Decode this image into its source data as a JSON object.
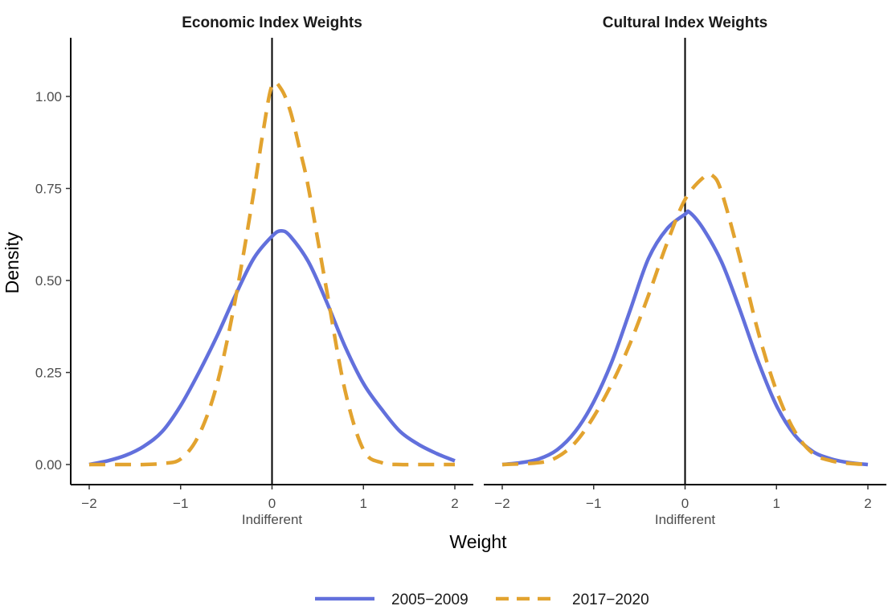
{
  "chart_data": {
    "type": "line",
    "ylabel": "Density",
    "xlabel": "Weight",
    "zero_tick_sublabel": "Indifferent",
    "xlim": [
      -2,
      2
    ],
    "ylim": [
      0,
      1.05
    ],
    "x_ticks": [
      -2,
      -1,
      0,
      1,
      2
    ],
    "x_tick_labels": [
      "−2",
      "−1",
      "0",
      "1",
      "2"
    ],
    "y_ticks": [
      0,
      0.25,
      0.5,
      0.75,
      1.0
    ],
    "y_tick_labels": [
      "0.00",
      "0.25",
      "0.50",
      "0.75",
      "1.00"
    ],
    "reference_line_x": 0,
    "legend_position": "bottom",
    "legend": [
      {
        "label": "2005−2009",
        "color": "#6270DC",
        "style": "solid"
      },
      {
        "label": "2017−2020",
        "color": "#E2A32F",
        "style": "dashed"
      }
    ],
    "panels": [
      {
        "title": "Economic Index Weights",
        "series": [
          {
            "name": "2005−2009",
            "x": [
              -2.0,
              -1.8,
              -1.6,
              -1.4,
              -1.2,
              -1.0,
              -0.8,
              -0.6,
              -0.4,
              -0.2,
              0.0,
              0.1,
              0.2,
              0.4,
              0.6,
              0.8,
              1.0,
              1.2,
              1.4,
              1.6,
              1.8,
              2.0
            ],
            "y": [
              0.0,
              0.01,
              0.025,
              0.05,
              0.09,
              0.16,
              0.25,
              0.35,
              0.46,
              0.56,
              0.62,
              0.635,
              0.62,
              0.55,
              0.44,
              0.32,
              0.22,
              0.15,
              0.09,
              0.055,
              0.03,
              0.01
            ]
          },
          {
            "name": "2017−2020",
            "x": [
              -2.0,
              -1.6,
              -1.4,
              -1.2,
              -1.0,
              -0.8,
              -0.6,
              -0.4,
              -0.2,
              -0.1,
              0.0,
              0.1,
              0.2,
              0.3,
              0.4,
              0.6,
              0.8,
              1.0,
              1.2,
              1.4,
              1.6,
              1.8,
              2.0
            ],
            "y": [
              0.0,
              0.0,
              0.0,
              0.003,
              0.015,
              0.08,
              0.22,
              0.45,
              0.74,
              0.9,
              1.03,
              1.02,
              0.96,
              0.86,
              0.75,
              0.47,
              0.2,
              0.04,
              0.005,
              0.0,
              0.0,
              0.0,
              0.0
            ]
          }
        ]
      },
      {
        "title": "Cultural Index Weights",
        "series": [
          {
            "name": "2005−2009",
            "x": [
              -2.0,
              -1.8,
              -1.6,
              -1.4,
              -1.2,
              -1.0,
              -0.8,
              -0.6,
              -0.4,
              -0.2,
              0.0,
              0.05,
              0.2,
              0.4,
              0.6,
              0.8,
              1.0,
              1.2,
              1.4,
              1.6,
              1.8,
              2.0
            ],
            "y": [
              0.0,
              0.005,
              0.015,
              0.04,
              0.09,
              0.17,
              0.28,
              0.42,
              0.56,
              0.64,
              0.68,
              0.685,
              0.64,
              0.55,
              0.42,
              0.28,
              0.16,
              0.08,
              0.035,
              0.015,
              0.005,
              0.0
            ]
          },
          {
            "name": "2017−2020",
            "x": [
              -2.0,
              -1.6,
              -1.4,
              -1.2,
              -1.0,
              -0.8,
              -0.6,
              -0.4,
              -0.2,
              0.0,
              0.2,
              0.3,
              0.4,
              0.6,
              0.8,
              1.0,
              1.2,
              1.4,
              1.6,
              1.8,
              2.0
            ],
            "y": [
              0.0,
              0.005,
              0.02,
              0.06,
              0.13,
              0.22,
              0.33,
              0.46,
              0.6,
              0.72,
              0.78,
              0.785,
              0.74,
              0.56,
              0.36,
              0.2,
              0.09,
              0.03,
              0.01,
              0.003,
              0.0
            ]
          }
        ]
      }
    ]
  }
}
